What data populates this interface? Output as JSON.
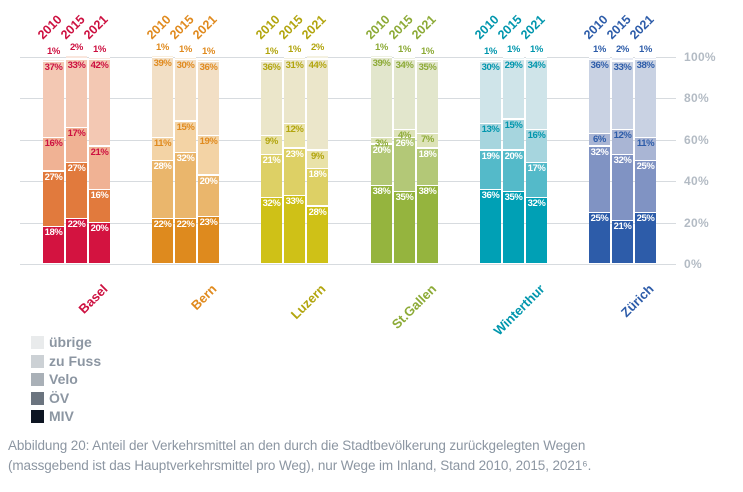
{
  "figure": {
    "caption_line1": "Abbildung 20: Anteil der Verkehrsmittel an den durch die Stadtbevölkerung zurückgelegten Wegen",
    "caption_line2": "(massgebend ist das Hauptverkehrsmittel pro Weg), nur Wege im Inland, Stand 2010, 2015, 2021⁶."
  },
  "legend": {
    "items": [
      {
        "label": "übrige",
        "color": "#e9ebec"
      },
      {
        "label": "zu Fuss",
        "color": "#ccd1d5"
      },
      {
        "label": "Velo",
        "color": "#a9b0b7"
      },
      {
        "label": "ÖV",
        "color": "#6b747f"
      },
      {
        "label": "MIV",
        "color": "#0d1522"
      }
    ]
  },
  "chart_data": {
    "type": "bar",
    "stacked": true,
    "unit": "percent",
    "ylim": [
      0,
      100
    ],
    "yticks": [
      0,
      20,
      40,
      60,
      80,
      100
    ],
    "ytick_labels": [
      "0%",
      "20%",
      "40%",
      "60%",
      "80%",
      "100%"
    ],
    "grid": true,
    "legend_position": "bottom-left",
    "years": [
      "2010",
      "2015",
      "2021"
    ],
    "modes_top_to_bottom": [
      "übrige",
      "zu Fuss",
      "Velo",
      "ÖV",
      "MIV"
    ],
    "axis_color": "#b3bbc4",
    "grid_color": "#d7dbdf",
    "cities": [
      {
        "name": "Basel",
        "accent": "#cd1040",
        "mode_colors": [
          "#f9e6dd",
          "#f3c8b3",
          "#f0b294",
          "#e17a3d",
          "#d31340"
        ],
        "values": {
          "2010": [
            1,
            37,
            16,
            27,
            18
          ],
          "2015": [
            2,
            33,
            17,
            27,
            22
          ],
          "2021": [
            1,
            42,
            21,
            16,
            20
          ]
        }
      },
      {
        "name": "Bern",
        "accent": "#e08a1e",
        "mode_colors": [
          "#f9eedd",
          "#f2dfc5",
          "#f3d3a5",
          "#eab66c",
          "#de8a1e"
        ],
        "values": {
          "2010": [
            1,
            39,
            11,
            28,
            22
          ],
          "2015": [
            1,
            30,
            15,
            32,
            22
          ],
          "2021": [
            1,
            36,
            19,
            20,
            23
          ]
        }
      },
      {
        "name": "Luzern",
        "accent": "#b2a50e",
        "mode_colors": [
          "#f4f1e1",
          "#ebe6ca",
          "#e9e2a8",
          "#ddd065",
          "#cfc117"
        ],
        "values": {
          "2010": [
            1,
            36,
            9,
            21,
            32
          ],
          "2015": [
            1,
            31,
            12,
            23,
            33
          ],
          "2021": [
            2,
            44,
            9,
            18,
            28
          ]
        }
      },
      {
        "name": "St.Gallen",
        "accent": "#8caa36",
        "mode_colors": [
          "#eef1e2",
          "#e2e6cc",
          "#dde3b8",
          "#b3c877",
          "#95b43e"
        ],
        "values": {
          "2010": [
            1,
            39,
            3,
            20,
            38
          ],
          "2015": [
            1,
            34,
            4,
            26,
            35
          ],
          "2021": [
            1,
            35,
            7,
            18,
            38
          ]
        }
      },
      {
        "name": "Winterthur",
        "accent": "#0096ad",
        "mode_colors": [
          "#e9f3f5",
          "#cfe4e9",
          "#a6d5de",
          "#54bac9",
          "#00a0b5"
        ],
        "values": {
          "2010": [
            1,
            30,
            13,
            19,
            36
          ],
          "2015": [
            1,
            29,
            15,
            20,
            35
          ],
          "2021": [
            1,
            34,
            16,
            17,
            32
          ]
        }
      },
      {
        "name": "Zürich",
        "accent": "#2d5ca9",
        "mode_colors": [
          "#e9ecf4",
          "#c9d2e3",
          "#a9b5d4",
          "#8093c3",
          "#2d5ca9"
        ],
        "values": {
          "2010": [
            1,
            36,
            6,
            32,
            25
          ],
          "2015": [
            2,
            33,
            12,
            32,
            21
          ],
          "2021": [
            1,
            38,
            11,
            25,
            25
          ]
        }
      }
    ]
  }
}
